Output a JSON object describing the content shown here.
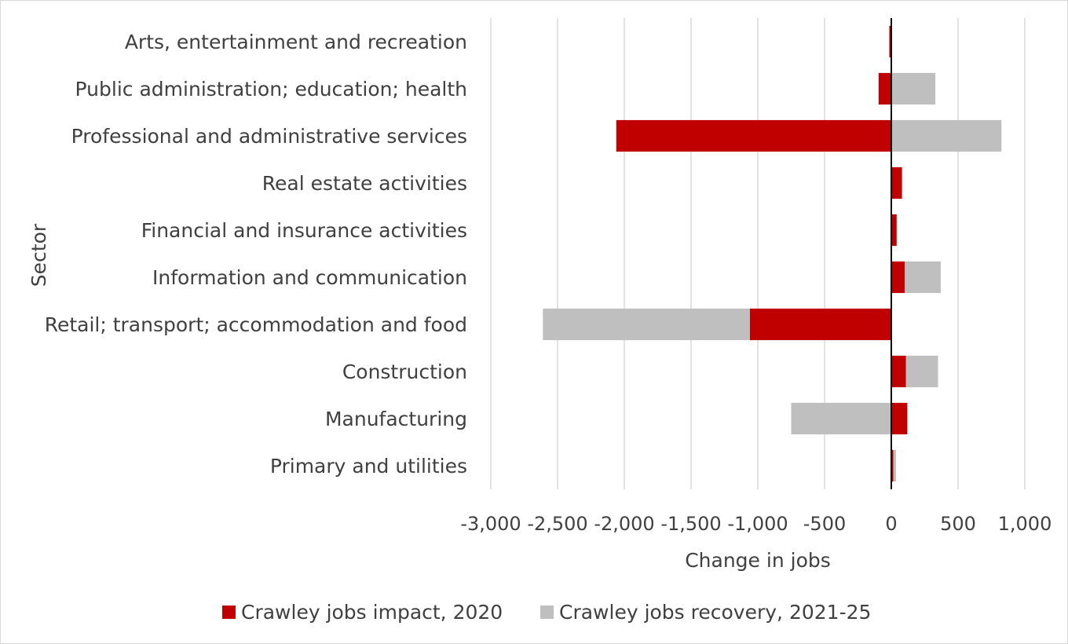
{
  "chart_data": {
    "type": "bar",
    "orientation": "horizontal",
    "stacked": true,
    "categories": [
      "Arts, entertainment and recreation",
      "Public administration; education; health ",
      "Professional and administrative services",
      "Real estate activities",
      "Financial and insurance activities",
      "Information and communication",
      "Retail; transport; accommodation and food",
      "Construction",
      "Manufacturing",
      "Primary and utilities"
    ],
    "series": [
      {
        "name": "Crawley jobs impact, 2020",
        "color": "#c00000",
        "values": [
          -15,
          -95,
          -2060,
          80,
          40,
          100,
          -1060,
          110,
          120,
          15
        ]
      },
      {
        "name": "Crawley jobs recovery, 2021-25",
        "color": "#bfbfbf",
        "values": [
          0,
          330,
          825,
          0,
          0,
          270,
          -1550,
          240,
          -750,
          20
        ]
      }
    ],
    "xlim": [
      -3000,
      1000
    ],
    "xticks": [
      -3000,
      -2500,
      -2000,
      -1500,
      -1000,
      -500,
      0,
      500,
      1000
    ],
    "xtick_labels": [
      "-3,000",
      "-2,500",
      "-2,000",
      "-1,500",
      "-1,000",
      "-500",
      "0",
      "500",
      "1,000"
    ],
    "xlabel": "Change in jobs",
    "ylabel": "Sector",
    "grid": "vertical",
    "legend": "bottom"
  }
}
